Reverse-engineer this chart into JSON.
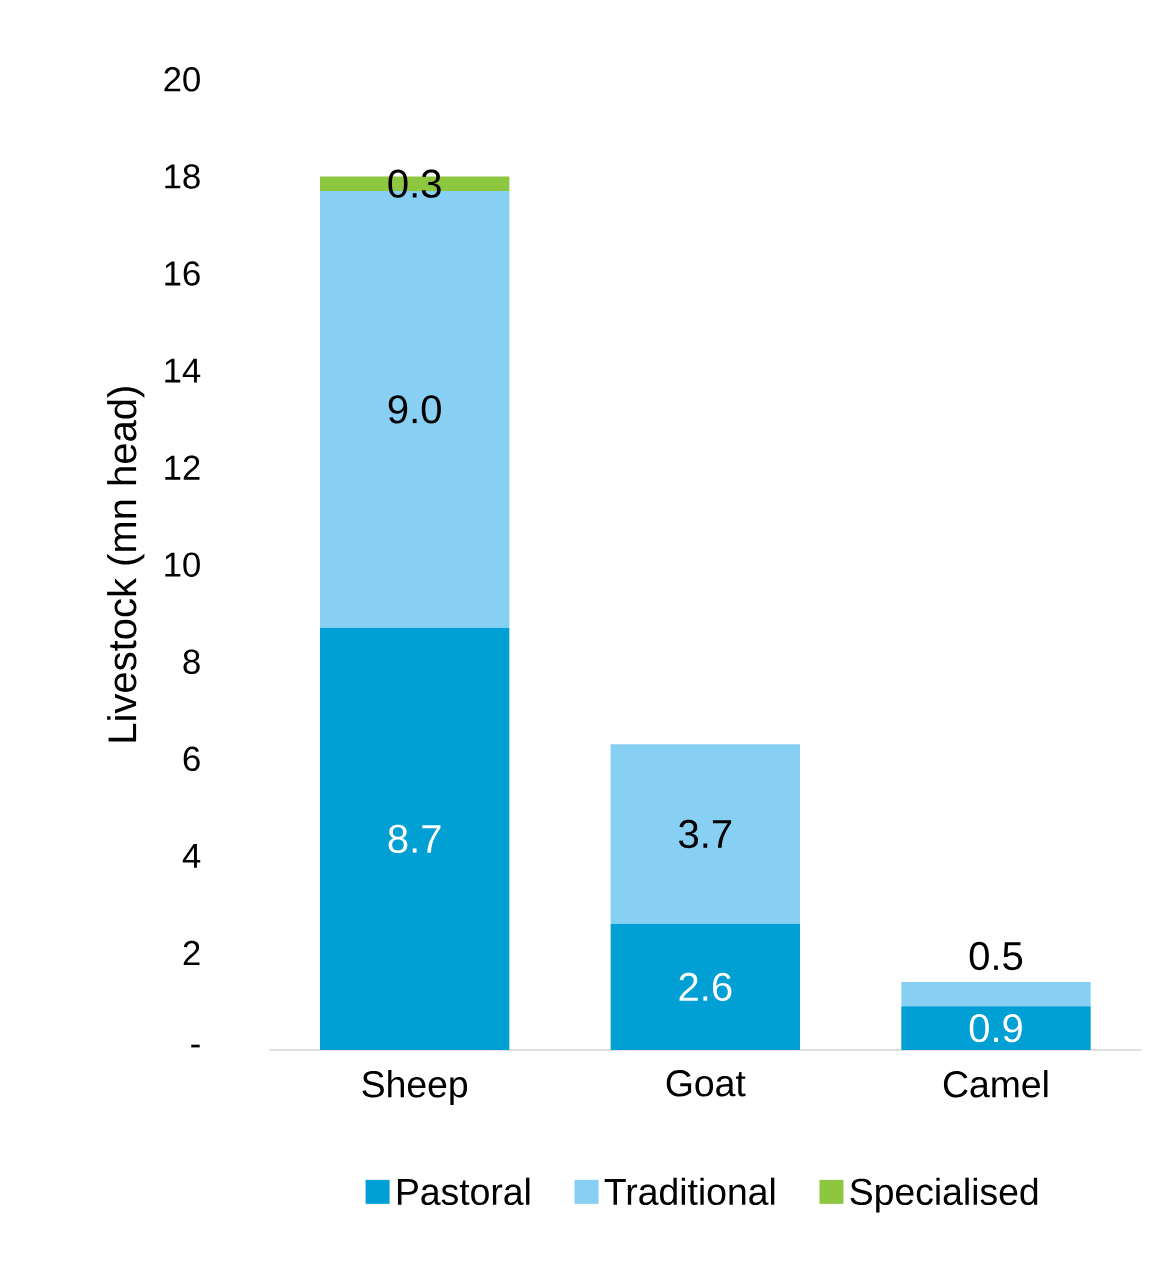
{
  "chart_data": {
    "type": "bar",
    "stacked": true,
    "ylabel": "Livestock (mn head)",
    "categories": [
      "Sheep",
      "Goat",
      "Camel"
    ],
    "series": [
      {
        "name": "Pastoral",
        "color": "#009fd4",
        "values": [
          8.7,
          2.6,
          0.9
        ],
        "value_labels": [
          "8.7",
          "2.6",
          "0.9"
        ]
      },
      {
        "name": "Traditional",
        "color": "#87cff3",
        "values": [
          9.0,
          3.7,
          0.5
        ],
        "value_labels": [
          "9.0",
          "3.7",
          "0.5"
        ]
      },
      {
        "name": "Specialised",
        "color": "#8dc63f",
        "values": [
          0.3,
          null,
          null
        ],
        "value_labels": [
          "0.3",
          null,
          null
        ]
      }
    ],
    "ylim": [
      0,
      20
    ],
    "yticks": [
      {
        "value": 0,
        "label": "-"
      },
      2,
      4,
      6,
      8,
      10,
      12,
      14,
      16,
      18,
      20
    ],
    "legend": "bottom"
  }
}
